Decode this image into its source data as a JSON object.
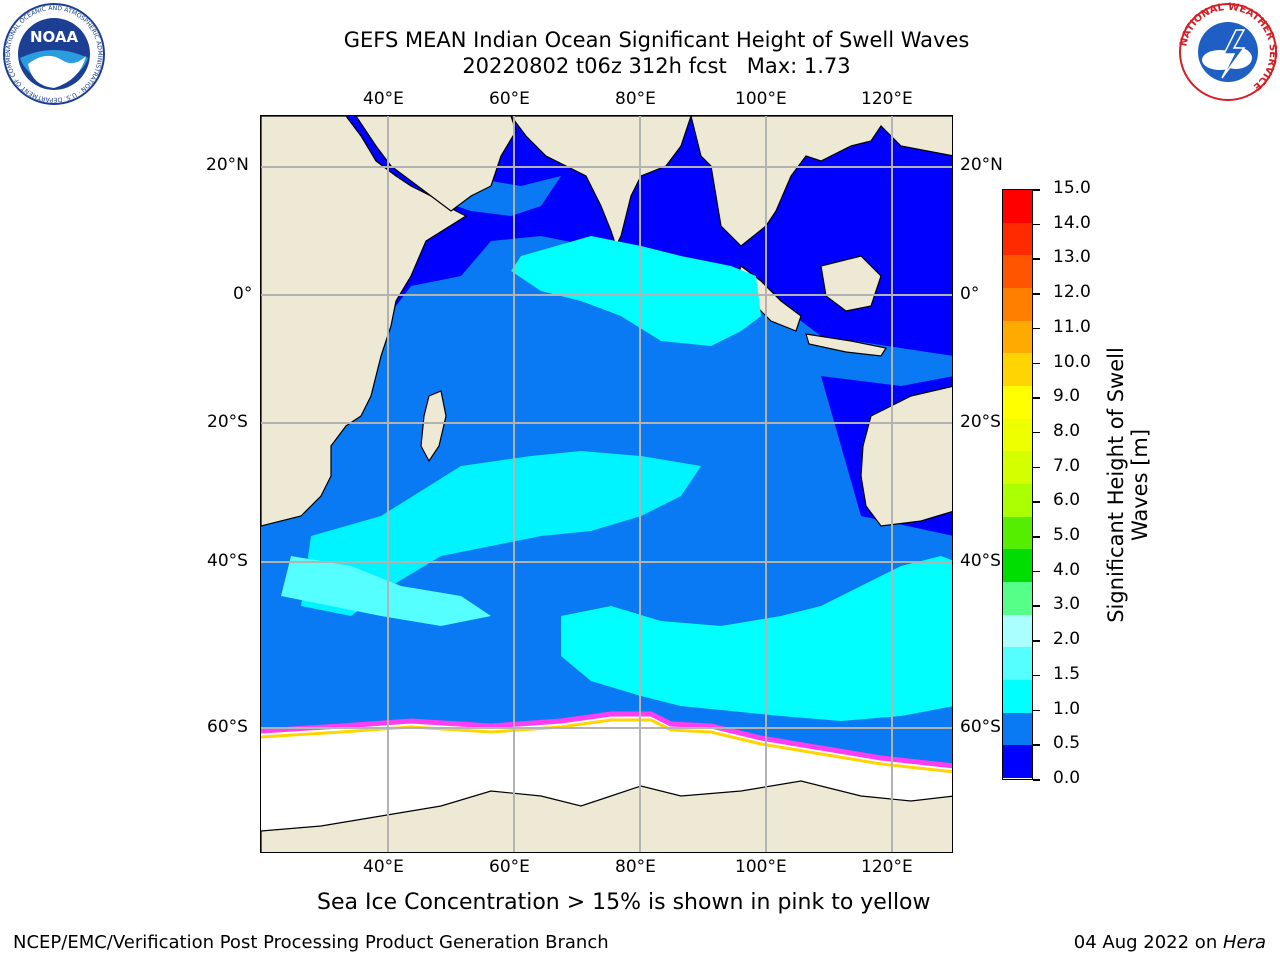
{
  "title": {
    "line1": "GEFS MEAN Indian Ocean Significant Height of Swell Waves",
    "line2": "20220802 t06z 312h fcst   Max: 1.73"
  },
  "axes": {
    "lon_ticks": [
      "40°E",
      "60°E",
      "80°E",
      "100°E",
      "120°E"
    ],
    "lat_ticks_left": [
      "20°N",
      "0°",
      "20°S",
      "40°S",
      "60°S"
    ],
    "lat_ticks_right": [
      "20°N",
      "0°",
      "20°S",
      "40°S",
      "60°S"
    ]
  },
  "colorbar": {
    "label_line1": "Significant Height of Swell",
    "label_line2": "Waves [m]",
    "ticks": [
      "15.0",
      "14.0",
      "13.0",
      "12.0",
      "11.0",
      "10.0",
      "9.0",
      "8.0",
      "7.0",
      "6.0",
      "5.0",
      "4.0",
      "3.0",
      "2.0",
      "1.5",
      "1.0",
      "0.5",
      "0.0"
    ],
    "colors": [
      "#ff0000",
      "#ff2a00",
      "#ff5500",
      "#ff8000",
      "#ffaa00",
      "#ffd400",
      "#ffff00",
      "#eeff00",
      "#d4ff00",
      "#aaff00",
      "#55ee00",
      "#00dd00",
      "#55ff88",
      "#aaffff",
      "#55ffff",
      "#00ffff",
      "#0a79f4",
      "#0000ff"
    ]
  },
  "map": {
    "ocean_base_color": "#0a79f4",
    "calm_color": "#0000ff",
    "swell_color": "#00ffff",
    "land_color": "#ede9d5",
    "ice_color": "#ffffff",
    "ice_edge_colors": [
      "#ff3df2",
      "#ffd400"
    ]
  },
  "caption": "Sea Ice Concentration > 15% is shown in pink to yellow",
  "footer": {
    "left": "NCEP/EMC/Verification Post Processing Product Generation Branch",
    "right_prefix": "04 Aug 2022 on ",
    "right_host": "Hera"
  },
  "logos": {
    "noaa_text": "NOAA",
    "noaa_ring": "NATIONAL OCEANIC AND ATMOSPHERIC ADMINISTRATION · U.S. DEPARTMENT OF COMMERCE",
    "nws_ring": "NATIONAL WEATHER SERVICE"
  }
}
